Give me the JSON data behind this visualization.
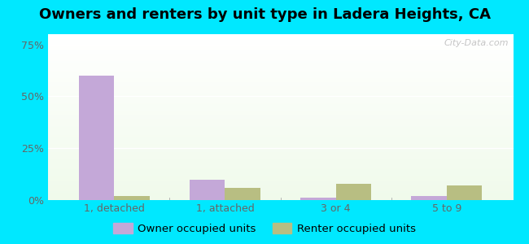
{
  "title": "Owners and renters by unit type in Ladera Heights, CA",
  "categories": [
    "1, detached",
    "1, attached",
    "3 or 4",
    "5 to 9"
  ],
  "owner_values": [
    60,
    10,
    1,
    2
  ],
  "renter_values": [
    2,
    6,
    8,
    7
  ],
  "owner_color": "#c4a8d8",
  "renter_color": "#b8be82",
  "yticks": [
    0,
    25,
    50,
    75
  ],
  "ytick_labels": [
    "0%",
    "25%",
    "50%",
    "75%"
  ],
  "ylim": [
    0,
    80
  ],
  "bar_width": 0.32,
  "bg_outer": "#00e8ff",
  "title_fontsize": 13,
  "tick_fontsize": 9,
  "legend_fontsize": 9.5,
  "watermark": "City-Data.com"
}
